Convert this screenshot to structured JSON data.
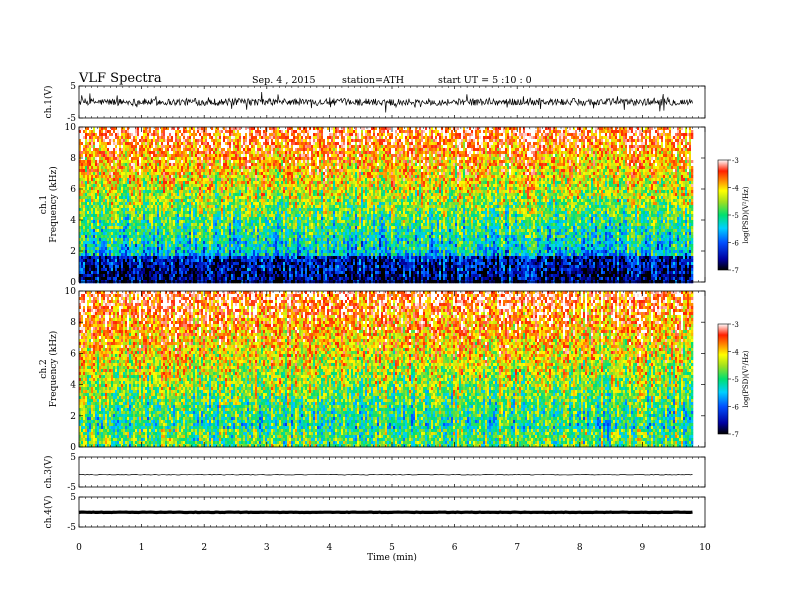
{
  "header": {
    "title": "VLF Spectra",
    "date": "Sep. 4 , 2015",
    "station": "station=ATH",
    "start": "start UT = 5 :10 : 0"
  },
  "chart_data": [
    {
      "type": "line",
      "name": "waveform",
      "ylabel": "ch.1(V)",
      "ylim": [
        -5,
        5
      ],
      "yticks": [
        "5",
        "-5"
      ],
      "xlim": [
        0,
        10
      ]
    },
    {
      "type": "heatmap",
      "name": "spectrogram",
      "ylabel": "ch.1\nFrequency (kHz)",
      "ylim": [
        0,
        10
      ],
      "yticks": [
        "0",
        "2",
        "4",
        "6",
        "8",
        "10"
      ],
      "xlim": [
        0,
        9.8
      ],
      "colorbar": {
        "label": "log(PSD)(V²/Hz)",
        "range": [
          -7,
          -3
        ],
        "ticks": [
          "-3",
          "-4",
          "-5",
          "-6",
          "-7"
        ]
      }
    },
    {
      "type": "heatmap",
      "name": "spectrogram",
      "ylabel": "ch.2\nFrequency (kHz)",
      "ylim": [
        0,
        10
      ],
      "yticks": [
        "0",
        "2",
        "4",
        "6",
        "8",
        "10"
      ],
      "xlim": [
        0,
        9.8
      ],
      "colorbar": {
        "label": "log(PSD)(V²/Hz)",
        "range": [
          -7,
          -3
        ],
        "ticks": [
          "-3",
          "-4",
          "-5",
          "-6",
          "-7"
        ]
      }
    },
    {
      "type": "line",
      "name": "waveform",
      "ylabel": "ch.3(V)",
      "ylim": [
        -5,
        5
      ],
      "yticks": [
        "5",
        "-5"
      ],
      "xlim": [
        0,
        10
      ]
    },
    {
      "type": "line",
      "name": "waveform",
      "ylabel": "ch.4(V)",
      "ylim": [
        -5,
        5
      ],
      "yticks": [
        "5",
        "-5"
      ],
      "xlim": [
        0,
        10
      ]
    }
  ],
  "x_axis": {
    "label": "Time (min)",
    "ticks": [
      "0",
      "1",
      "2",
      "3",
      "4",
      "5",
      "6",
      "7",
      "8",
      "9",
      "10"
    ],
    "range": [
      0,
      10
    ]
  }
}
